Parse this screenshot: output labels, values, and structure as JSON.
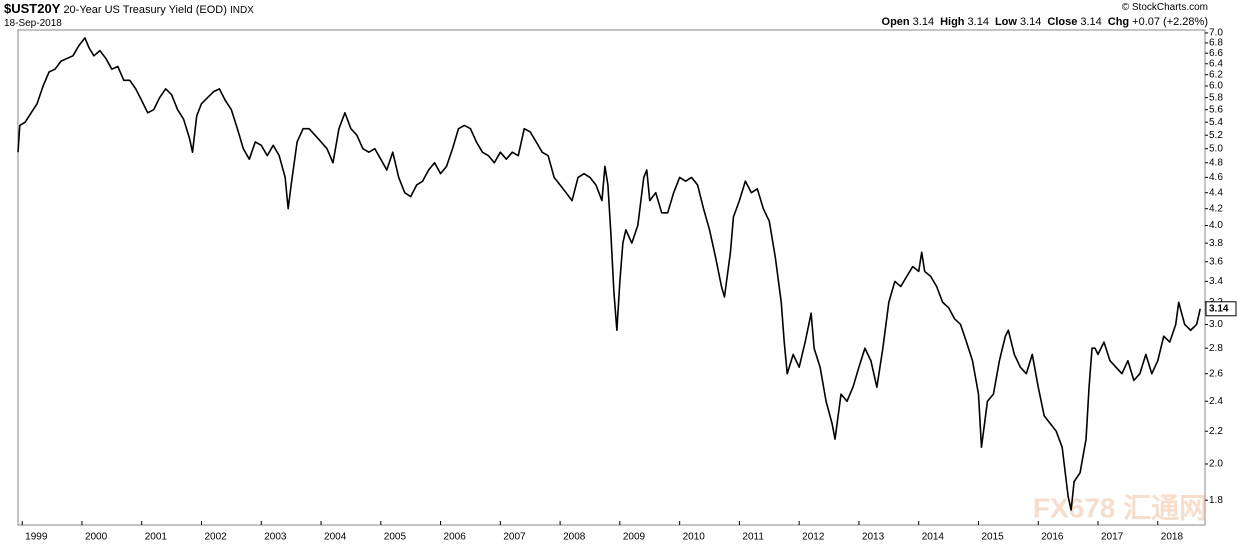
{
  "chart_data": {
    "type": "line",
    "symbol": "$UST20Y",
    "title": "20-Year US Treasury Yield (EOD)",
    "exchange": "INDX",
    "date": "18-Sep-2018",
    "source": "© StockCharts.com",
    "watermark": "FX678 汇通网",
    "stats": [
      {
        "label": "Open",
        "value": "3.14"
      },
      {
        "label": "High",
        "value": "3.14"
      },
      {
        "label": "Low",
        "value": "3.14"
      },
      {
        "label": "Close",
        "value": "3.14"
      },
      {
        "label": "Chg",
        "value": "+0.07 (+2.28%)"
      }
    ],
    "color": "#000000",
    "log_y": true,
    "grid": false,
    "xlim": [
      1998.93,
      2018.79
    ],
    "ylim": [
      1.675,
      7.06
    ],
    "xticks": [
      1999,
      2000,
      2001,
      2002,
      2003,
      2004,
      2005,
      2006,
      2007,
      2008,
      2009,
      2010,
      2011,
      2012,
      2013,
      2014,
      2015,
      2016,
      2017,
      2018
    ],
    "yticks": [
      1.8,
      {
        "value": 2.0,
        "label": "2.0"
      },
      2.2,
      2.4,
      2.6,
      2.8,
      {
        "value": 3.0,
        "label": "3.0"
      },
      3.2,
      3.4,
      3.6,
      3.8,
      {
        "value": 4.0,
        "label": "4.0"
      },
      4.2,
      4.4,
      4.6,
      4.8,
      {
        "value": 5.0,
        "label": "5.0"
      },
      5.2,
      5.4,
      5.6,
      5.8,
      {
        "value": 6.0,
        "label": "6.0"
      },
      6.2,
      6.4,
      6.6,
      6.8,
      {
        "value": 7.0,
        "label": "7.0"
      }
    ],
    "x": [
      1998.93,
      1998.96,
      1999.05,
      1999.15,
      1999.25,
      1999.35,
      1999.45,
      1999.55,
      1999.65,
      1999.75,
      1999.85,
      1999.95,
      2000.05,
      2000.12,
      2000.2,
      2000.3,
      2000.4,
      2000.5,
      2000.6,
      2000.7,
      2000.8,
      2000.9,
      2001.0,
      2001.1,
      2001.2,
      2001.3,
      2001.4,
      2001.5,
      2001.6,
      2001.7,
      2001.8,
      2001.85,
      2001.92,
      2002.0,
      2002.1,
      2002.2,
      2002.3,
      2002.4,
      2002.5,
      2002.6,
      2002.7,
      2002.8,
      2002.9,
      2003.0,
      2003.1,
      2003.2,
      2003.3,
      2003.4,
      2003.45,
      2003.5,
      2003.6,
      2003.7,
      2003.8,
      2003.9,
      2004.0,
      2004.1,
      2004.2,
      2004.3,
      2004.4,
      2004.5,
      2004.6,
      2004.7,
      2004.8,
      2004.9,
      2005.0,
      2005.1,
      2005.2,
      2005.3,
      2005.4,
      2005.5,
      2005.6,
      2005.7,
      2005.8,
      2005.9,
      2006.0,
      2006.1,
      2006.2,
      2006.3,
      2006.4,
      2006.5,
      2006.6,
      2006.7,
      2006.8,
      2006.9,
      2007.0,
      2007.1,
      2007.2,
      2007.3,
      2007.4,
      2007.5,
      2007.6,
      2007.7,
      2007.8,
      2007.9,
      2008.0,
      2008.1,
      2008.2,
      2008.3,
      2008.4,
      2008.5,
      2008.6,
      2008.7,
      2008.75,
      2008.8,
      2008.85,
      2008.9,
      2008.95,
      2009.0,
      2009.05,
      2009.1,
      2009.2,
      2009.3,
      2009.4,
      2009.45,
      2009.5,
      2009.6,
      2009.7,
      2009.8,
      2009.9,
      2010.0,
      2010.1,
      2010.2,
      2010.3,
      2010.4,
      2010.5,
      2010.6,
      2010.7,
      2010.75,
      2010.85,
      2010.9,
      2011.0,
      2011.1,
      2011.2,
      2011.3,
      2011.4,
      2011.5,
      2011.6,
      2011.7,
      2011.75,
      2011.8,
      2011.9,
      2012.0,
      2012.1,
      2012.2,
      2012.25,
      2012.35,
      2012.45,
      2012.55,
      2012.6,
      2012.7,
      2012.8,
      2012.9,
      2013.0,
      2013.1,
      2013.2,
      2013.3,
      2013.4,
      2013.5,
      2013.6,
      2013.7,
      2013.8,
      2013.9,
      2014.0,
      2014.05,
      2014.1,
      2014.2,
      2014.3,
      2014.4,
      2014.5,
      2014.6,
      2014.7,
      2014.8,
      2014.9,
      2015.0,
      2015.05,
      2015.15,
      2015.25,
      2015.35,
      2015.45,
      2015.5,
      2015.6,
      2015.7,
      2015.8,
      2015.9,
      2016.0,
      2016.1,
      2016.2,
      2016.3,
      2016.4,
      2016.5,
      2016.55,
      2016.6,
      2016.7,
      2016.8,
      2016.85,
      2016.9,
      2016.95,
      2017.0,
      2017.1,
      2017.2,
      2017.3,
      2017.4,
      2017.5,
      2017.6,
      2017.7,
      2017.8,
      2017.9,
      2018.0,
      2018.1,
      2018.2,
      2018.3,
      2018.35,
      2018.45,
      2018.55,
      2018.65,
      2018.71
    ],
    "values": [
      4.95,
      5.35,
      5.4,
      5.55,
      5.7,
      6.0,
      6.25,
      6.3,
      6.45,
      6.5,
      6.55,
      6.75,
      6.9,
      6.7,
      6.55,
      6.65,
      6.5,
      6.3,
      6.35,
      6.1,
      6.1,
      5.95,
      5.75,
      5.55,
      5.6,
      5.8,
      5.95,
      5.85,
      5.6,
      5.45,
      5.15,
      4.95,
      5.5,
      5.7,
      5.8,
      5.9,
      5.95,
      5.75,
      5.6,
      5.3,
      5.0,
      4.85,
      5.1,
      5.05,
      4.9,
      5.05,
      4.9,
      4.6,
      4.2,
      4.5,
      5.1,
      5.3,
      5.3,
      5.2,
      5.1,
      5.0,
      4.8,
      5.3,
      5.55,
      5.3,
      5.2,
      5.0,
      4.95,
      5.0,
      4.85,
      4.7,
      4.95,
      4.6,
      4.4,
      4.35,
      4.5,
      4.55,
      4.7,
      4.8,
      4.65,
      4.75,
      5.0,
      5.3,
      5.35,
      5.3,
      5.1,
      4.95,
      4.9,
      4.8,
      4.95,
      4.85,
      4.95,
      4.9,
      5.3,
      5.25,
      5.1,
      4.95,
      4.9,
      4.6,
      4.5,
      4.4,
      4.3,
      4.6,
      4.65,
      4.6,
      4.5,
      4.3,
      4.75,
      4.5,
      3.9,
      3.3,
      2.95,
      3.4,
      3.8,
      3.95,
      3.8,
      4.0,
      4.6,
      4.7,
      4.3,
      4.4,
      4.15,
      4.15,
      4.4,
      4.6,
      4.55,
      4.6,
      4.5,
      4.2,
      3.95,
      3.65,
      3.35,
      3.25,
      3.7,
      4.1,
      4.3,
      4.55,
      4.4,
      4.45,
      4.2,
      4.05,
      3.65,
      3.2,
      2.85,
      2.6,
      2.75,
      2.65,
      2.85,
      3.1,
      2.8,
      2.65,
      2.4,
      2.25,
      2.15,
      2.45,
      2.4,
      2.5,
      2.65,
      2.8,
      2.7,
      2.5,
      2.8,
      3.2,
      3.4,
      3.35,
      3.45,
      3.55,
      3.5,
      3.7,
      3.5,
      3.45,
      3.35,
      3.2,
      3.15,
      3.05,
      3.0,
      2.85,
      2.7,
      2.45,
      2.1,
      2.4,
      2.45,
      2.7,
      2.9,
      2.95,
      2.75,
      2.65,
      2.6,
      2.75,
      2.5,
      2.3,
      2.25,
      2.2,
      2.1,
      1.82,
      1.75,
      1.9,
      1.95,
      2.15,
      2.5,
      2.8,
      2.8,
      2.75,
      2.85,
      2.7,
      2.65,
      2.6,
      2.7,
      2.55,
      2.6,
      2.75,
      2.6,
      2.7,
      2.9,
      2.85,
      3.0,
      3.2,
      3.0,
      2.95,
      3.0,
      3.14
    ]
  }
}
